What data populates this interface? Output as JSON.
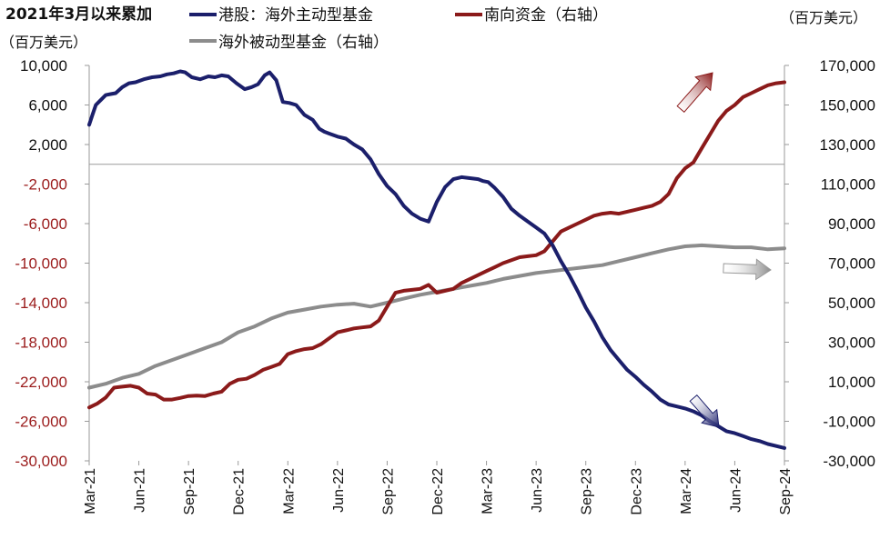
{
  "chart_data": {
    "type": "line",
    "title": "2021年3月以来累加",
    "left_unit": "（百万美元）",
    "right_unit": "（百万美元）",
    "left_axis": {
      "ylim": [
        -30000,
        10000
      ],
      "ticks": [
        10000,
        6000,
        2000,
        -2000,
        -6000,
        -10000,
        -14000,
        -18000,
        -22000,
        -26000,
        -30000
      ],
      "tick_labels": [
        "10,000",
        "6,000",
        "2,000",
        "-2,000",
        "-6,000",
        "-10,000",
        "-14,000",
        "-18,000",
        "-22,000",
        "-26,000",
        "-30,000"
      ],
      "negative_color": "#9b1c1c",
      "positive_color": "#111111"
    },
    "right_axis": {
      "ylim": [
        -30000,
        170000
      ],
      "ticks": [
        170000,
        150000,
        130000,
        110000,
        90000,
        70000,
        50000,
        30000,
        10000,
        -10000,
        -30000
      ],
      "tick_labels": [
        "170,000",
        "150,000",
        "130,000",
        "110,000",
        "90,000",
        "70,000",
        "50,000",
        "30,000",
        "10,000",
        "-10,000",
        "-30,000"
      ],
      "color": "#111111"
    },
    "x_labels": [
      "Mar-21",
      "Jun-21",
      "Sep-21",
      "Dec-21",
      "Mar-22",
      "Jun-22",
      "Sep-22",
      "Dec-22",
      "Mar-23",
      "Jun-23",
      "Sep-23",
      "Dec-23",
      "Mar-24",
      "Jun-24",
      "Sep-24"
    ],
    "grid": false,
    "legend_position": "top",
    "series": [
      {
        "name": "港股：海外主动型基金",
        "axis": "left",
        "color": "#1b1f6b",
        "x": [
          0,
          0.2,
          0.4,
          0.7,
          1.0,
          1.3,
          1.6,
          2.0,
          2.4,
          2.8,
          3.3,
          3.8,
          4.3,
          4.7,
          5.1,
          5.5,
          5.8,
          6.2,
          6.7,
          7.2,
          7.6,
          8.0,
          8.4,
          8.9,
          9.4,
          9.8,
          10.2,
          10.6,
          10.9,
          11.3,
          11.7,
          12.1,
          12.5,
          13.0,
          13.5,
          13.9,
          14.2,
          14.5,
          15.0,
          15.5,
          16.0,
          16.5,
          17.0,
          17.5,
          18.0,
          18.5,
          19.0,
          19.5,
          20.0,
          20.5,
          21.0,
          21.5,
          22.0,
          22.5,
          23.0,
          23.5,
          23.8,
          24.1,
          24.5,
          25.0,
          25.5,
          26.0,
          26.5,
          27.0,
          27.5,
          28.0,
          28.5,
          29.0,
          29.5,
          30.0,
          30.5,
          31.0,
          31.5,
          32.0,
          32.5,
          33.0,
          33.5,
          34.0,
          34.5,
          35.0,
          35.5,
          36.0,
          36.5,
          37.0,
          37.5,
          38.0,
          38.5,
          39.0,
          39.5,
          40.0,
          40.5,
          41.0,
          41.5,
          42.0
        ],
        "y": [
          4000,
          5000,
          6000,
          6500,
          7000,
          7100,
          7200,
          7800,
          8200,
          8300,
          8600,
          8800,
          8900,
          9100,
          9200,
          9400,
          9300,
          8800,
          8600,
          8900,
          8800,
          9000,
          8900,
          8200,
          7600,
          7800,
          8100,
          9000,
          9300,
          8500,
          6300,
          6200,
          6000,
          5000,
          4500,
          3600,
          3300,
          3100,
          2800,
          2600,
          2000,
          1500,
          500,
          -1000,
          -2200,
          -3000,
          -4200,
          -5000,
          -5500,
          -5800,
          -3800,
          -2300,
          -1500,
          -1300,
          -1400,
          -1500,
          -1700,
          -1800,
          -2400,
          -3300,
          -4500,
          -5200,
          -5800,
          -6400,
          -7000,
          -8200,
          -9800,
          -11200,
          -12800,
          -14500,
          -15900,
          -17500,
          -18800,
          -19800,
          -20800,
          -21500,
          -22300,
          -23000,
          -23800,
          -24300,
          -24500,
          -24700,
          -25000,
          -25400,
          -26000,
          -26500,
          -27000,
          -27200,
          -27500,
          -27800,
          -28000,
          -28300,
          -28500,
          -28700
        ]
      },
      {
        "name": "南向资金（右轴）",
        "axis": "right",
        "color": "#8b1a1a",
        "x": [
          0,
          0.5,
          1.0,
          1.5,
          2.0,
          2.5,
          3.0,
          3.5,
          4.0,
          4.5,
          5.0,
          5.5,
          6.0,
          6.5,
          7.0,
          7.5,
          8.0,
          8.5,
          9.0,
          9.5,
          10.0,
          10.5,
          11.0,
          11.5,
          12.0,
          12.5,
          13.0,
          13.5,
          14.0,
          14.5,
          15.0,
          15.5,
          16.0,
          16.5,
          17.0,
          17.5,
          18.0,
          18.5,
          19.0,
          19.5,
          20.0,
          20.5,
          21.0,
          21.5,
          22.0,
          22.5,
          23.0,
          23.5,
          24.0,
          24.5,
          25.0,
          25.5,
          26.0,
          26.5,
          27.0,
          27.5,
          28.0,
          28.5,
          29.0,
          29.5,
          30.0,
          30.5,
          31.0,
          31.5,
          32.0,
          32.5,
          33.0,
          33.5,
          34.0,
          34.5,
          35.0,
          35.5,
          36.0,
          36.5,
          37.0,
          37.5,
          38.0,
          38.5,
          39.0,
          39.5,
          40.0,
          40.5,
          41.0,
          41.5,
          42.0
        ],
        "y": [
          -3000,
          -1000,
          2000,
          7000,
          7500,
          8000,
          7000,
          4000,
          3500,
          1000,
          1000,
          1800,
          2800,
          3000,
          2800,
          4000,
          5000,
          9000,
          11000,
          11500,
          13500,
          16000,
          17500,
          19000,
          24000,
          25500,
          26500,
          27000,
          29000,
          32000,
          35000,
          36000,
          37000,
          37500,
          38000,
          41000,
          48000,
          55000,
          56000,
          56500,
          57000,
          59000,
          55000,
          56000,
          57000,
          60000,
          62000,
          64000,
          66000,
          68000,
          70000,
          71500,
          73000,
          73500,
          74000,
          76000,
          81000,
          86000,
          88000,
          90000,
          92000,
          94000,
          95000,
          95500,
          95000,
          96000,
          97000,
          98000,
          99000,
          101000,
          105000,
          113000,
          118000,
          121000,
          128000,
          135000,
          142000,
          147000,
          150000,
          154000,
          156000,
          158000,
          160000,
          161000,
          161500
        ]
      },
      {
        "name": "海外被动型基金（右轴）",
        "axis": "right",
        "color": "#8c8c8c",
        "x": [
          0,
          1,
          2,
          3,
          4,
          5,
          6,
          7,
          8,
          9,
          10,
          11,
          12,
          13,
          14,
          15,
          16,
          17,
          18,
          19,
          20,
          21,
          22,
          23,
          24,
          25,
          26,
          27,
          28,
          29,
          30,
          31,
          32,
          33,
          34,
          35,
          36,
          37,
          38,
          39,
          40,
          41,
          42
        ],
        "y": [
          7000,
          9000,
          12000,
          14000,
          18000,
          21000,
          24000,
          27000,
          30000,
          35000,
          38000,
          42000,
          45000,
          46500,
          48000,
          49000,
          49500,
          48000,
          50000,
          52000,
          54000,
          55500,
          57000,
          58500,
          60000,
          62000,
          63500,
          65000,
          66000,
          67000,
          68000,
          69000,
          71000,
          73000,
          75000,
          77000,
          78500,
          79000,
          78500,
          78000,
          78000,
          77000,
          77500
        ]
      }
    ],
    "arrows": [
      {
        "direction": "up",
        "color": "#8b1a1a"
      },
      {
        "direction": "right",
        "color": "#9a9a9a"
      },
      {
        "direction": "down",
        "color": "#1b1f6b"
      }
    ]
  }
}
